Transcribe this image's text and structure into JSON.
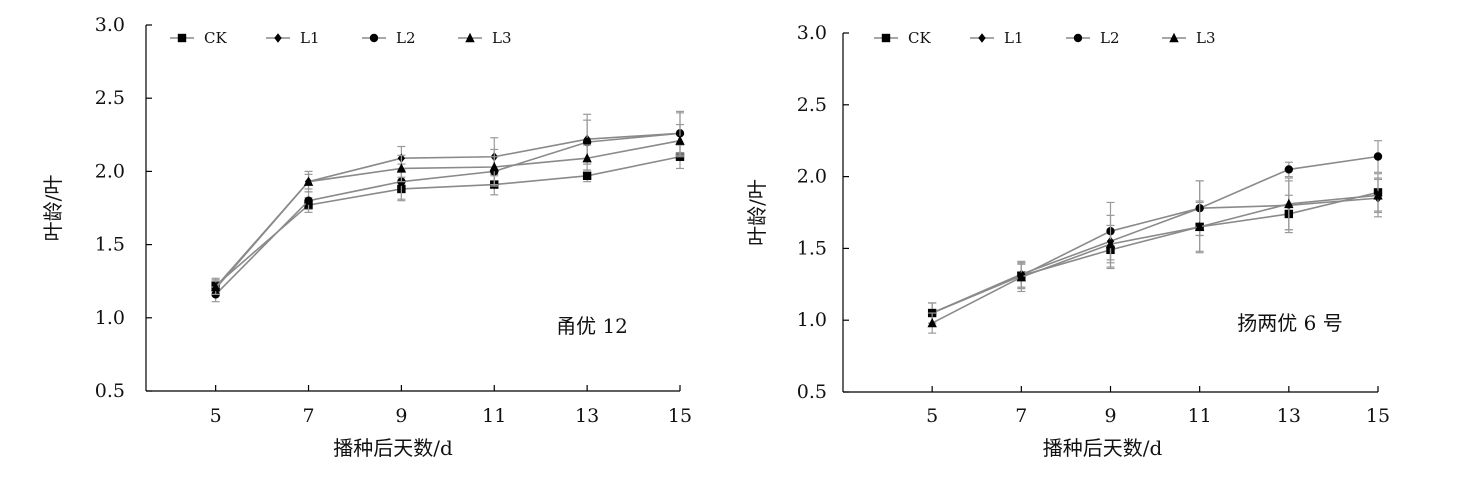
{
  "chart_data": [
    {
      "type": "line",
      "annotation": "甬优 12",
      "xlabel": "播种后天数/d",
      "ylabel": "叶龄/叶",
      "x": [
        5,
        7,
        9,
        11,
        13,
        15
      ],
      "xlim": [
        3.5,
        15
      ],
      "ylim": [
        0.5,
        3.0
      ],
      "yticks": [
        "0.5",
        "1.0",
        "1.5",
        "2.0",
        "2.5",
        "3.0"
      ],
      "xticks": [
        "5",
        "7",
        "9",
        "11",
        "13",
        "15"
      ],
      "legend_position": "top-left",
      "series": [
        {
          "name": "CK",
          "marker": "square",
          "values": [
            1.22,
            1.77,
            1.88,
            1.91,
            1.97,
            2.1
          ],
          "errors": [
            0.05,
            0.05,
            0.08,
            0.07,
            0.04,
            0.08
          ]
        },
        {
          "name": "L1",
          "marker": "diamond",
          "values": [
            1.2,
            1.93,
            2.09,
            2.1,
            2.22,
            2.26
          ],
          "errors": [
            0.05,
            0.07,
            0.08,
            0.13,
            0.17,
            0.15
          ]
        },
        {
          "name": "L2",
          "marker": "circle",
          "values": [
            1.16,
            1.8,
            1.93,
            2.0,
            2.2,
            2.26
          ],
          "errors": [
            0.05,
            0.06,
            0.12,
            0.1,
            0.15,
            0.14
          ]
        },
        {
          "name": "L3",
          "marker": "triangle",
          "values": [
            1.21,
            1.93,
            2.02,
            2.03,
            2.09,
            2.21
          ],
          "errors": [
            0.05,
            0.05,
            0.09,
            0.12,
            0.09,
            0.11
          ]
        }
      ]
    },
    {
      "type": "line",
      "annotation": "扬两优 6 号",
      "xlabel": "播种后天数/d",
      "ylabel": "叶龄/叶",
      "x": [
        5,
        7,
        9,
        11,
        13,
        15
      ],
      "xlim": [
        3.0,
        15
      ],
      "ylim": [
        0.5,
        3.0
      ],
      "yticks": [
        "0.5",
        "1.0",
        "1.5",
        "2.0",
        "2.5",
        "3.0"
      ],
      "xticks": [
        "5",
        "7",
        "9",
        "11",
        "13",
        "15"
      ],
      "legend_position": "top-left",
      "series": [
        {
          "name": "CK",
          "marker": "square",
          "values": [
            1.05,
            1.31,
            1.49,
            1.65,
            1.74,
            1.89
          ],
          "errors": [
            0.07,
            0.08,
            0.13,
            0.18,
            0.13,
            0.13
          ]
        },
        {
          "name": "L1",
          "marker": "diamond",
          "values": [
            1.05,
            1.32,
            1.55,
            1.78,
            1.8,
            1.85
          ],
          "errors": [
            0.07,
            0.09,
            0.18,
            0.19,
            0.17,
            0.13
          ]
        },
        {
          "name": "L2",
          "marker": "circle",
          "values": [
            1.05,
            1.31,
            1.62,
            1.78,
            2.05,
            2.14
          ],
          "errors": [
            0.07,
            0.09,
            0.2,
            0.19,
            0.05,
            0.11
          ]
        },
        {
          "name": "L3",
          "marker": "triangle",
          "values": [
            0.98,
            1.3,
            1.53,
            1.65,
            1.81,
            1.87
          ],
          "errors": [
            0.07,
            0.1,
            0.13,
            0.17,
            0.18,
            0.12
          ]
        }
      ]
    }
  ]
}
